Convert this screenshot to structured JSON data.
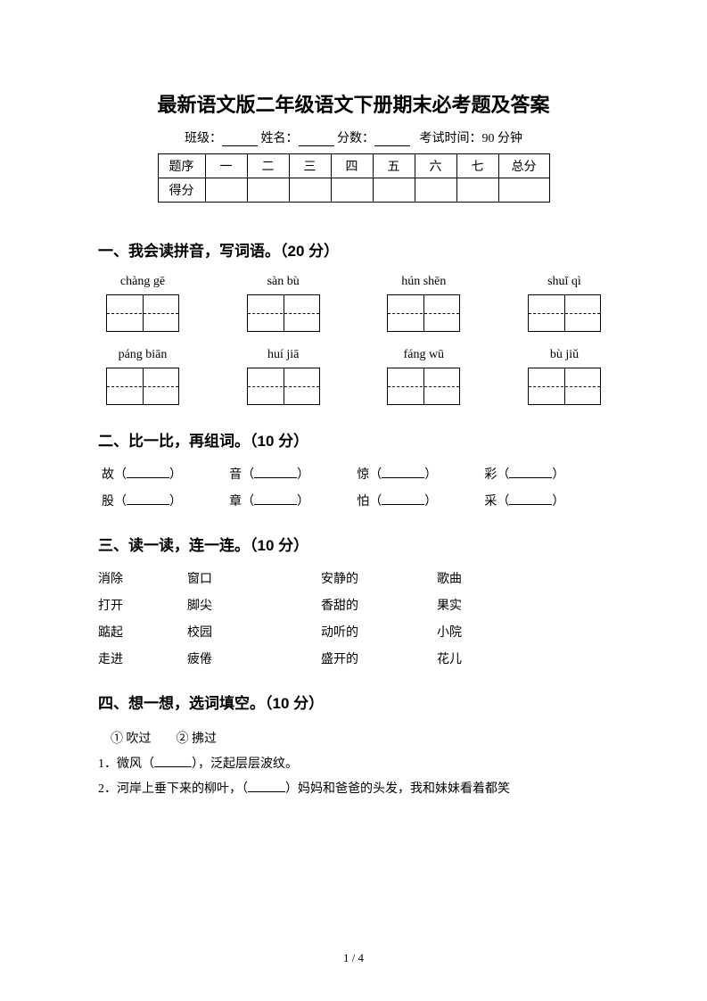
{
  "title": "最新语文版二年级语文下册期末必考题及答案",
  "info": {
    "class_label": "班级：",
    "name_label": "姓名：",
    "score_label": "分数：",
    "time_label": "考试时间：90 分钟"
  },
  "score_table": {
    "row1": [
      "题序",
      "一",
      "二",
      "三",
      "四",
      "五",
      "六",
      "七",
      "总分"
    ],
    "row2_label": "得分"
  },
  "section1": {
    "heading": "一、我会读拼音，写词语。（20 分）",
    "row1": [
      "chàng gē",
      "sàn bù",
      "hún shēn",
      "shuǐ qì"
    ],
    "row2": [
      "páng biān",
      "huí jiā",
      "fáng wū",
      "bù jiǔ"
    ]
  },
  "section2": {
    "heading": "二、比一比，再组词。（10 分）",
    "row1": [
      "故",
      "音",
      "惊",
      "彩"
    ],
    "row2": [
      "股",
      "章",
      "怕",
      "采"
    ]
  },
  "section3": {
    "heading": "三、读一读，连一连。（10 分）",
    "rows": [
      [
        "消除",
        "窗口",
        "安静的",
        "歌曲"
      ],
      [
        "打开",
        "脚尖",
        "香甜的",
        "果实"
      ],
      [
        "踮起",
        "校园",
        "动听的",
        "小院"
      ],
      [
        "走进",
        "疲倦",
        "盛开的",
        "花儿"
      ]
    ]
  },
  "section4": {
    "heading": "四、想一想，选词填空。（10 分）",
    "options": "① 吹过　　② 拂过",
    "line1_a": "1．微风（",
    "line1_b": "），泛起层层波纹。",
    "line2_a": "2．河岸上垂下来的柳叶，（",
    "line2_b": "）妈妈和爸爸的头发，我和妹妹看着都笑"
  },
  "pagenum": "1 / 4"
}
